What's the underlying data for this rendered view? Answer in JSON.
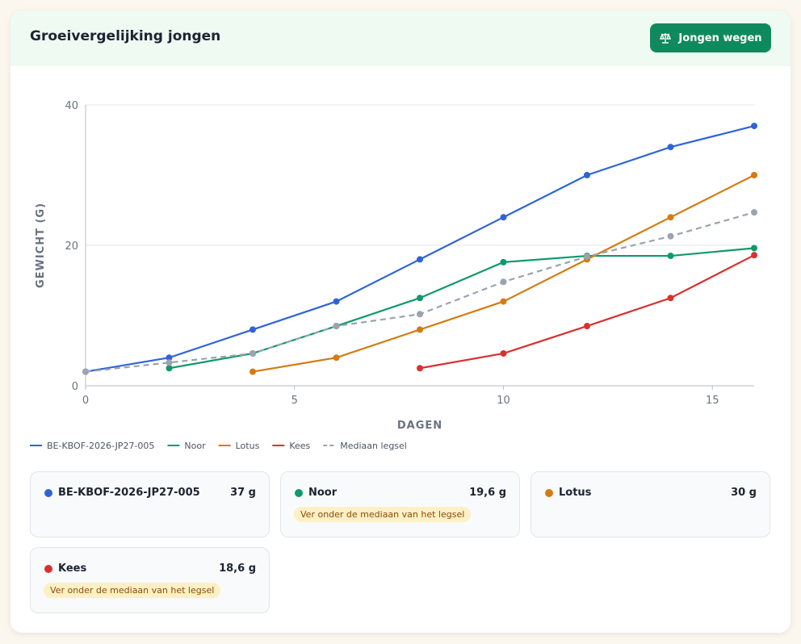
{
  "header": {
    "title": "Groeivergelijking jongen",
    "button": "Jongen wegen"
  },
  "chart_data": {
    "type": "line",
    "x_label": "DAGEN",
    "y_label": "GEWICHT (G)",
    "x": [
      0,
      2,
      4,
      6,
      8,
      10,
      12,
      14,
      16
    ],
    "series": [
      {
        "name": "BE-KBOF-2026-JP27-005",
        "color": "#2f64d6",
        "values": [
          2,
          4,
          8,
          12,
          18,
          24,
          30,
          34,
          37
        ]
      },
      {
        "name": "Noor",
        "color": "#0f9a6a",
        "values": [
          null,
          2.5,
          4.6,
          8.5,
          12.5,
          17.6,
          18.5,
          18.5,
          19.6
        ]
      },
      {
        "name": "Lotus",
        "color": "#d47b12",
        "values": [
          null,
          null,
          2,
          4,
          8,
          12,
          18,
          24,
          30
        ]
      },
      {
        "name": "Kees",
        "color": "#d93030",
        "values": [
          null,
          null,
          null,
          null,
          2.5,
          4.6,
          8.5,
          12.5,
          18.6
        ]
      },
      {
        "name": "Mediaan legsel",
        "color": "#9aa3b2",
        "dashed": true,
        "values": [
          2,
          3.3,
          4.6,
          8.5,
          10.2,
          14.8,
          18.4,
          21.3,
          24.7
        ]
      }
    ],
    "xlim": [
      0,
      16
    ],
    "xticks": [
      0,
      5,
      10,
      15
    ],
    "ylim": [
      0,
      40
    ],
    "yticks": [
      0,
      20,
      40
    ],
    "grid": true
  },
  "cards": [
    {
      "value": "37 g"
    },
    {
      "value": "19,6 g",
      "note": "Ver onder de mediaan van het legsel"
    },
    {
      "value": "30 g"
    },
    {
      "value": "18,6 g",
      "note": "Ver onder de mediaan van het legsel"
    }
  ]
}
